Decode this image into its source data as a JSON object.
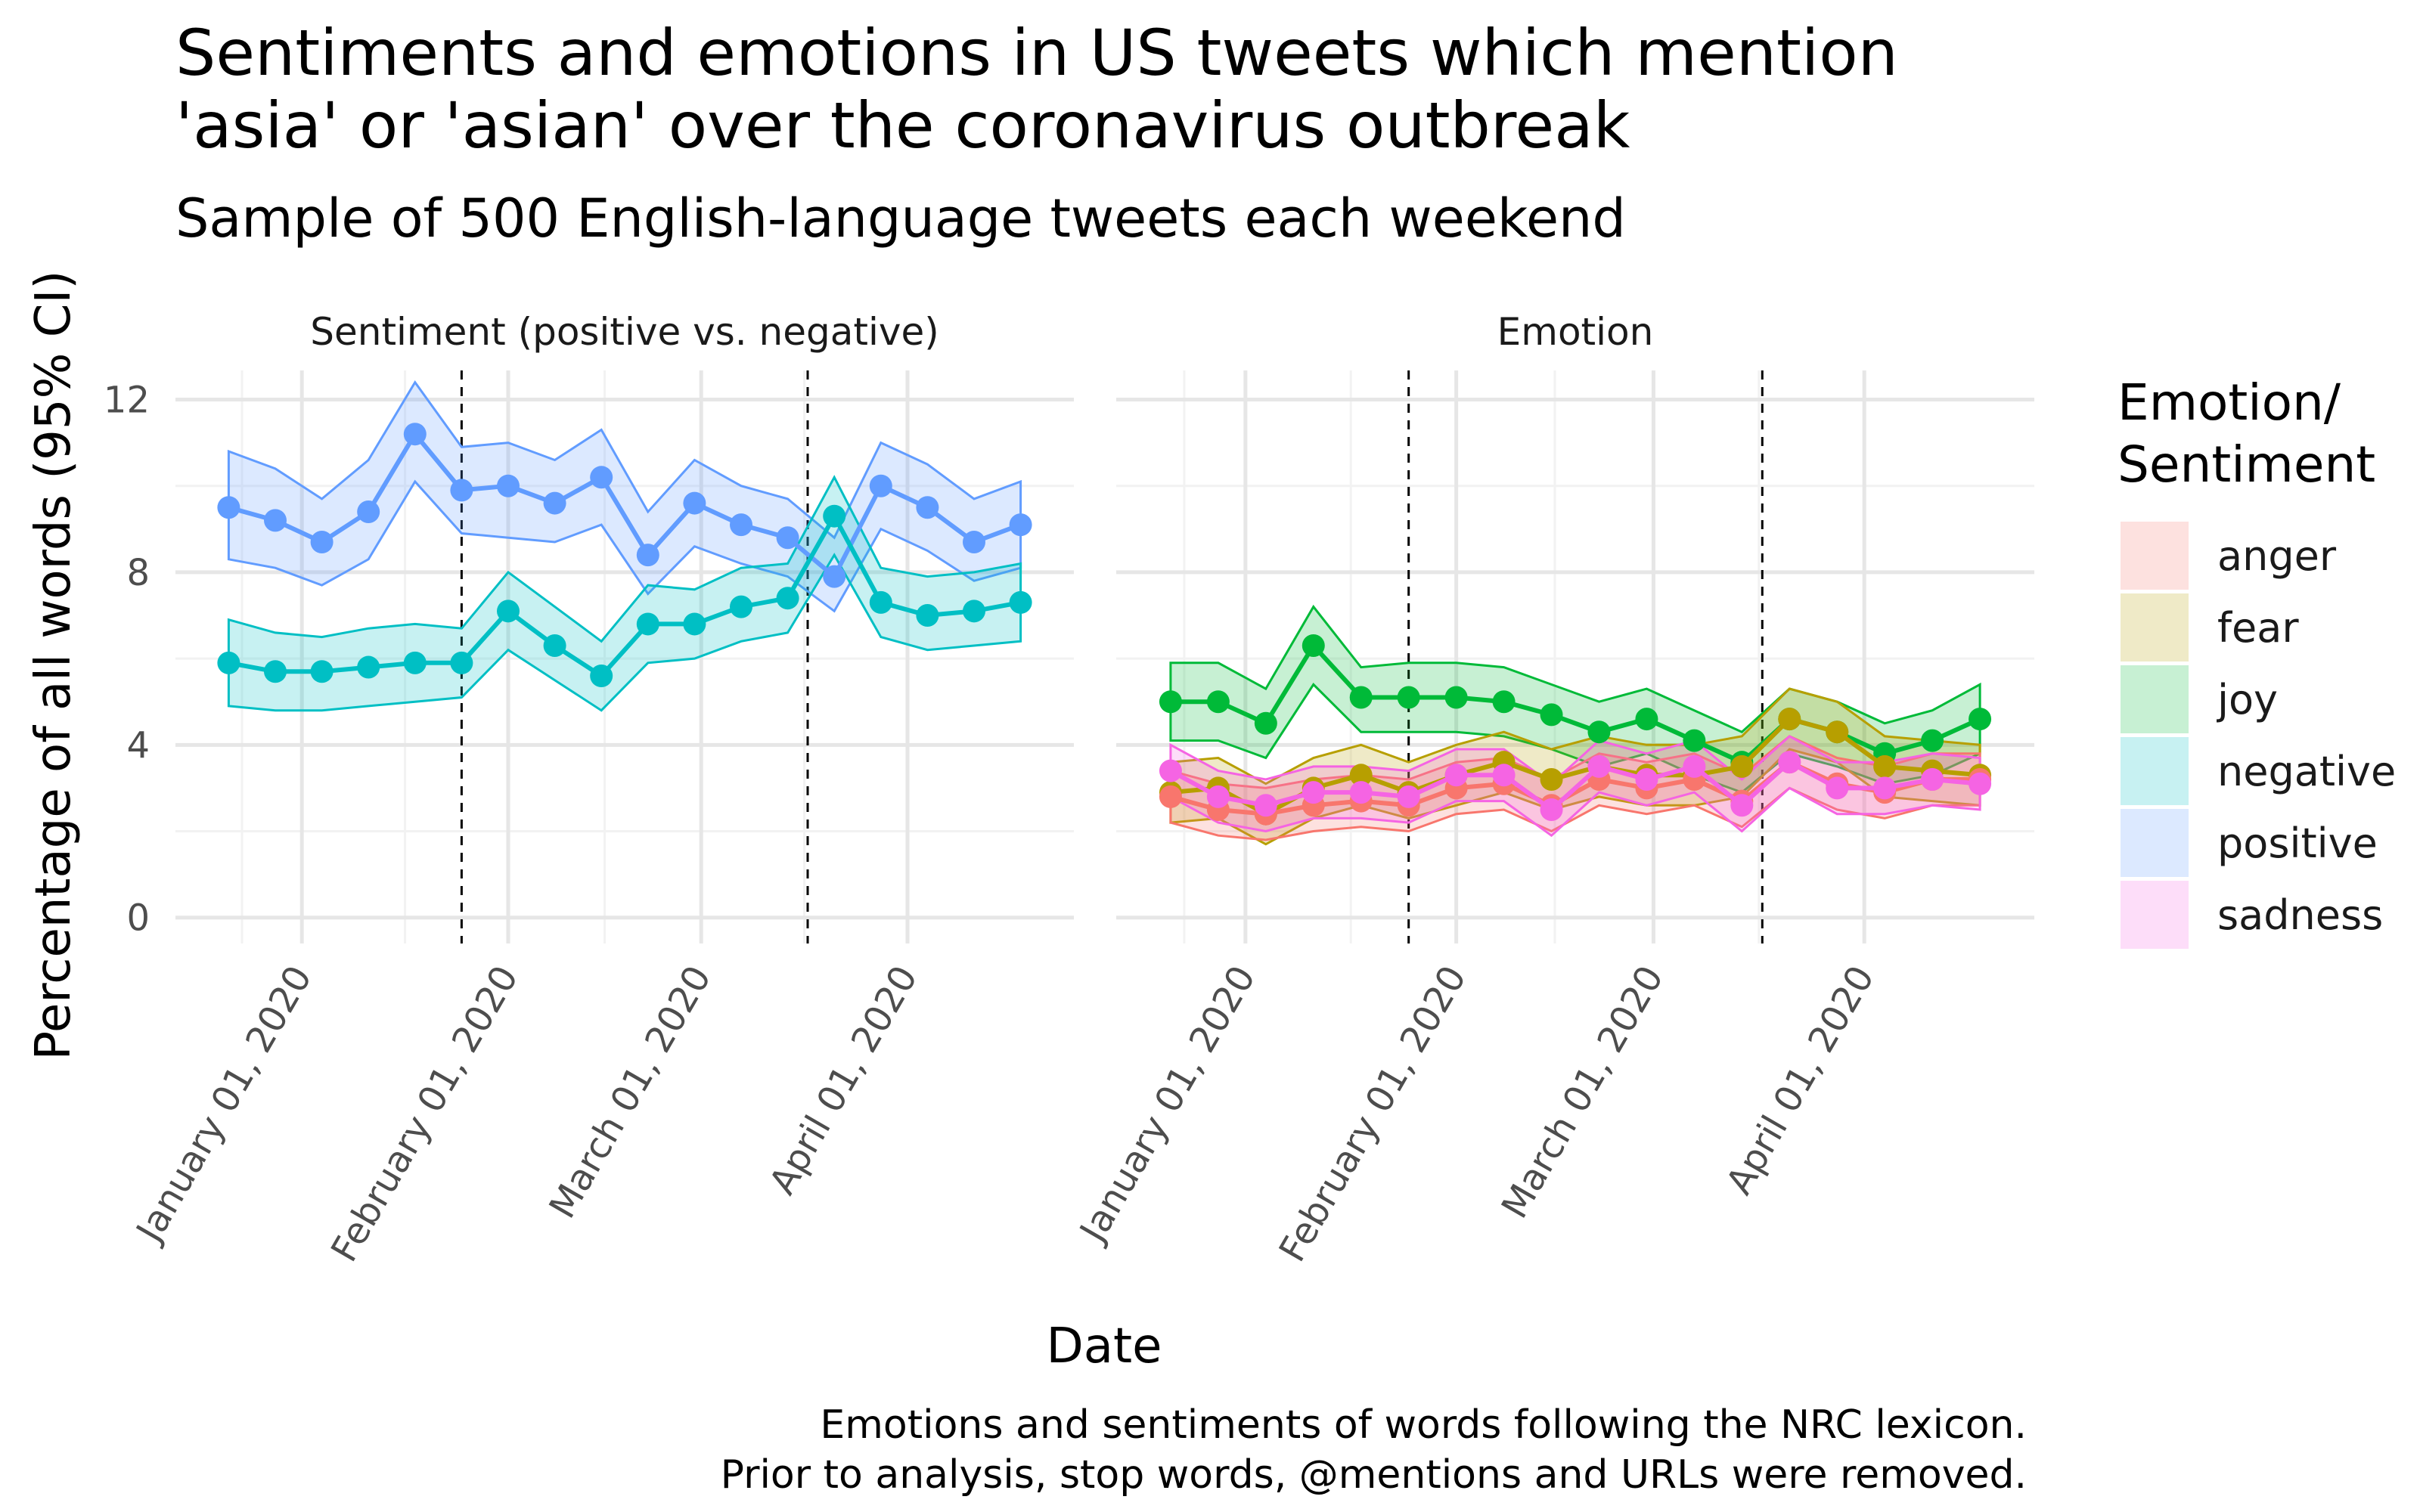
{
  "title": "Sentiments and emotions in US tweets which mention\n'asia' or 'asian' over the coronavirus outbreak",
  "subtitle": "Sample of 500 English-language tweets each weekend",
  "caption": "Emotions and sentiments of words following the NRC lexicon.\nPrior to analysis, stop words, @mentions and URLs were removed.",
  "chart_data": {
    "type": "line",
    "xlabel": "Date",
    "ylabel": "Percentage of all words (95% CI)",
    "ylim": [
      -0.6,
      13.2
    ],
    "y_ticks": [
      0,
      4,
      8,
      12
    ],
    "x_ticks": [
      "2020-01-01",
      "2020-02-01",
      "2020-03-01",
      "2020-04-01"
    ],
    "x_tick_labels": [
      "January 01, 2020",
      "February 01, 2020",
      "March 01, 2020",
      "April 01, 2020"
    ],
    "x_range": [
      "2019-12-13",
      "2020-04-26"
    ],
    "vlines": [
      "2020-01-25",
      "2020-03-17"
    ],
    "x": [
      "2019-12-21",
      "2019-12-28",
      "2020-01-04",
      "2020-01-11",
      "2020-01-18",
      "2020-01-25",
      "2020-02-01",
      "2020-02-08",
      "2020-02-15",
      "2020-02-22",
      "2020-02-29",
      "2020-03-07",
      "2020-03-14",
      "2020-03-21",
      "2020-03-28",
      "2020-04-04",
      "2020-04-11",
      "2020-04-18"
    ],
    "grid": true,
    "legend": {
      "title": "Emotion/\nSentiment",
      "position": "right"
    },
    "colors": {
      "anger": "#F8766D",
      "fear": "#B79F00",
      "joy": "#00BA38",
      "negative": "#00BFC4",
      "positive": "#619CFF",
      "sadness": "#F564E3"
    },
    "panels": [
      {
        "title": "Sentiment (positive vs. negative)",
        "series": [
          {
            "name": "positive",
            "values": [
              9.5,
              9.2,
              8.7,
              9.4,
              11.2,
              9.9,
              10.0,
              9.6,
              10.2,
              8.4,
              9.6,
              9.1,
              8.8,
              7.9,
              10.0,
              9.5,
              8.7,
              9.1
            ],
            "lower": [
              8.3,
              8.1,
              7.7,
              8.3,
              10.1,
              8.9,
              8.8,
              8.7,
              9.1,
              7.5,
              8.6,
              8.2,
              7.9,
              7.1,
              9.0,
              8.5,
              7.8,
              8.1
            ],
            "upper": [
              10.8,
              10.4,
              9.7,
              10.6,
              12.4,
              10.9,
              11.0,
              10.6,
              11.3,
              9.4,
              10.6,
              10.0,
              9.7,
              8.8,
              11.0,
              10.5,
              9.7,
              10.1
            ]
          },
          {
            "name": "negative",
            "values": [
              5.9,
              5.7,
              5.7,
              5.8,
              5.9,
              5.9,
              7.1,
              6.3,
              5.6,
              6.8,
              6.8,
              7.2,
              7.4,
              9.3,
              7.3,
              7.0,
              7.1,
              7.3
            ],
            "lower": [
              4.9,
              4.8,
              4.8,
              4.9,
              5.0,
              5.1,
              6.2,
              5.5,
              4.8,
              5.9,
              6.0,
              6.4,
              6.6,
              8.4,
              6.5,
              6.2,
              6.3,
              6.4
            ],
            "upper": [
              6.9,
              6.6,
              6.5,
              6.7,
              6.8,
              6.7,
              8.0,
              7.2,
              6.4,
              7.7,
              7.6,
              8.1,
              8.2,
              10.2,
              8.1,
              7.9,
              8.0,
              8.2
            ]
          }
        ]
      },
      {
        "title": "Emotion",
        "series": [
          {
            "name": "joy",
            "values": [
              5.0,
              5.0,
              4.5,
              6.3,
              5.1,
              5.1,
              5.1,
              5.0,
              4.7,
              4.3,
              4.6,
              4.1,
              3.6,
              4.6,
              4.3,
              3.8,
              4.1,
              4.6
            ],
            "lower": [
              4.1,
              4.1,
              3.7,
              5.4,
              4.3,
              4.3,
              4.3,
              4.2,
              3.9,
              3.5,
              3.8,
              3.3,
              2.9,
              3.8,
              3.5,
              3.1,
              3.3,
              3.8
            ],
            "upper": [
              5.9,
              5.9,
              5.3,
              7.2,
              5.8,
              5.9,
              5.9,
              5.8,
              5.4,
              5.0,
              5.3,
              4.8,
              4.3,
              5.3,
              5.0,
              4.5,
              4.8,
              5.4
            ]
          },
          {
            "name": "fear",
            "values": [
              2.9,
              3.0,
              2.4,
              3.0,
              3.3,
              2.9,
              3.3,
              3.6,
              3.2,
              3.5,
              3.3,
              3.3,
              3.5,
              4.6,
              4.3,
              3.5,
              3.4,
              3.3
            ],
            "lower": [
              2.2,
              2.3,
              1.7,
              2.3,
              2.6,
              2.3,
              2.6,
              2.9,
              2.5,
              2.8,
              2.6,
              2.6,
              2.8,
              3.9,
              3.6,
              2.8,
              2.7,
              2.6
            ],
            "upper": [
              3.6,
              3.7,
              3.1,
              3.7,
              4.0,
              3.6,
              4.0,
              4.3,
              3.9,
              4.2,
              4.0,
              4.0,
              4.2,
              5.3,
              5.0,
              4.2,
              4.1,
              4.0
            ]
          },
          {
            "name": "anger",
            "values": [
              2.8,
              2.5,
              2.4,
              2.6,
              2.7,
              2.6,
              3.0,
              3.1,
              2.6,
              3.2,
              3.0,
              3.2,
              2.7,
              3.6,
              3.1,
              2.9,
              3.2,
              3.2
            ],
            "lower": [
              2.2,
              1.9,
              1.8,
              2.0,
              2.1,
              2.0,
              2.4,
              2.5,
              2.0,
              2.6,
              2.4,
              2.6,
              2.1,
              3.0,
              2.5,
              2.3,
              2.6,
              2.6
            ],
            "upper": [
              3.4,
              3.1,
              3.0,
              3.2,
              3.3,
              3.2,
              3.6,
              3.7,
              3.2,
              3.8,
              3.6,
              3.8,
              3.3,
              4.2,
              3.7,
              3.5,
              3.8,
              3.8
            ]
          },
          {
            "name": "sadness",
            "values": [
              3.4,
              2.8,
              2.6,
              2.9,
              2.9,
              2.8,
              3.3,
              3.3,
              2.5,
              3.5,
              3.2,
              3.5,
              2.6,
              3.6,
              3.0,
              3.0,
              3.2,
              3.1
            ],
            "lower": [
              2.8,
              2.2,
              2.0,
              2.3,
              2.3,
              2.2,
              2.7,
              2.7,
              1.9,
              2.9,
              2.6,
              2.9,
              2.0,
              3.0,
              2.4,
              2.4,
              2.6,
              2.5
            ],
            "upper": [
              4.0,
              3.4,
              3.2,
              3.5,
              3.5,
              3.4,
              3.9,
              3.9,
              3.1,
              4.1,
              3.8,
              4.1,
              3.2,
              4.2,
              3.6,
              3.6,
              3.8,
              3.7
            ]
          }
        ]
      }
    ],
    "legend_items": [
      "anger",
      "fear",
      "joy",
      "negative",
      "positive",
      "sadness"
    ]
  }
}
